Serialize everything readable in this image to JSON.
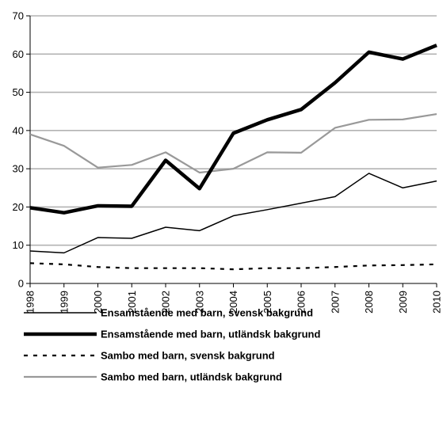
{
  "chart_data": {
    "type": "line",
    "title": "",
    "xlabel": "",
    "ylabel": "",
    "x": [
      "1998",
      "1999",
      "2000",
      "2001",
      "2002",
      "2003",
      "2004",
      "2005",
      "2006",
      "2007",
      "2008",
      "2009",
      "2010"
    ],
    "ylim": [
      0,
      70
    ],
    "yticks": [
      0,
      10,
      20,
      30,
      40,
      50,
      60,
      70
    ],
    "grid": true,
    "legend_position": "bottom",
    "series": [
      {
        "name": "Ensamstående med barn, svensk bakgrund",
        "values": [
          8.5,
          8.0,
          12.0,
          11.8,
          14.7,
          13.8,
          17.7,
          19.3,
          21.0,
          22.7,
          28.8,
          25.0,
          26.8
        ],
        "color": "#000000",
        "style": "solid-thin"
      },
      {
        "name": "Ensamstående med barn, utländsk bakgrund",
        "values": [
          19.8,
          18.5,
          20.3,
          20.2,
          32.2,
          24.8,
          39.3,
          42.8,
          45.5,
          52.5,
          60.5,
          58.7,
          62.3
        ],
        "color": "#000000",
        "style": "solid-thick"
      },
      {
        "name": "Sambo med barn, svensk bakgrund",
        "values": [
          5.3,
          5.0,
          4.3,
          4.0,
          4.0,
          4.0,
          3.7,
          4.0,
          4.0,
          4.3,
          4.7,
          4.8,
          5.0
        ],
        "color": "#000000",
        "style": "dotted"
      },
      {
        "name": "Sambo med barn, utländsk bakgrund",
        "values": [
          39.0,
          36.0,
          30.3,
          31.0,
          34.3,
          29.0,
          30.0,
          34.3,
          34.2,
          40.7,
          42.8,
          42.9,
          44.3
        ],
        "color": "#999999",
        "style": "solid-gray"
      }
    ]
  }
}
